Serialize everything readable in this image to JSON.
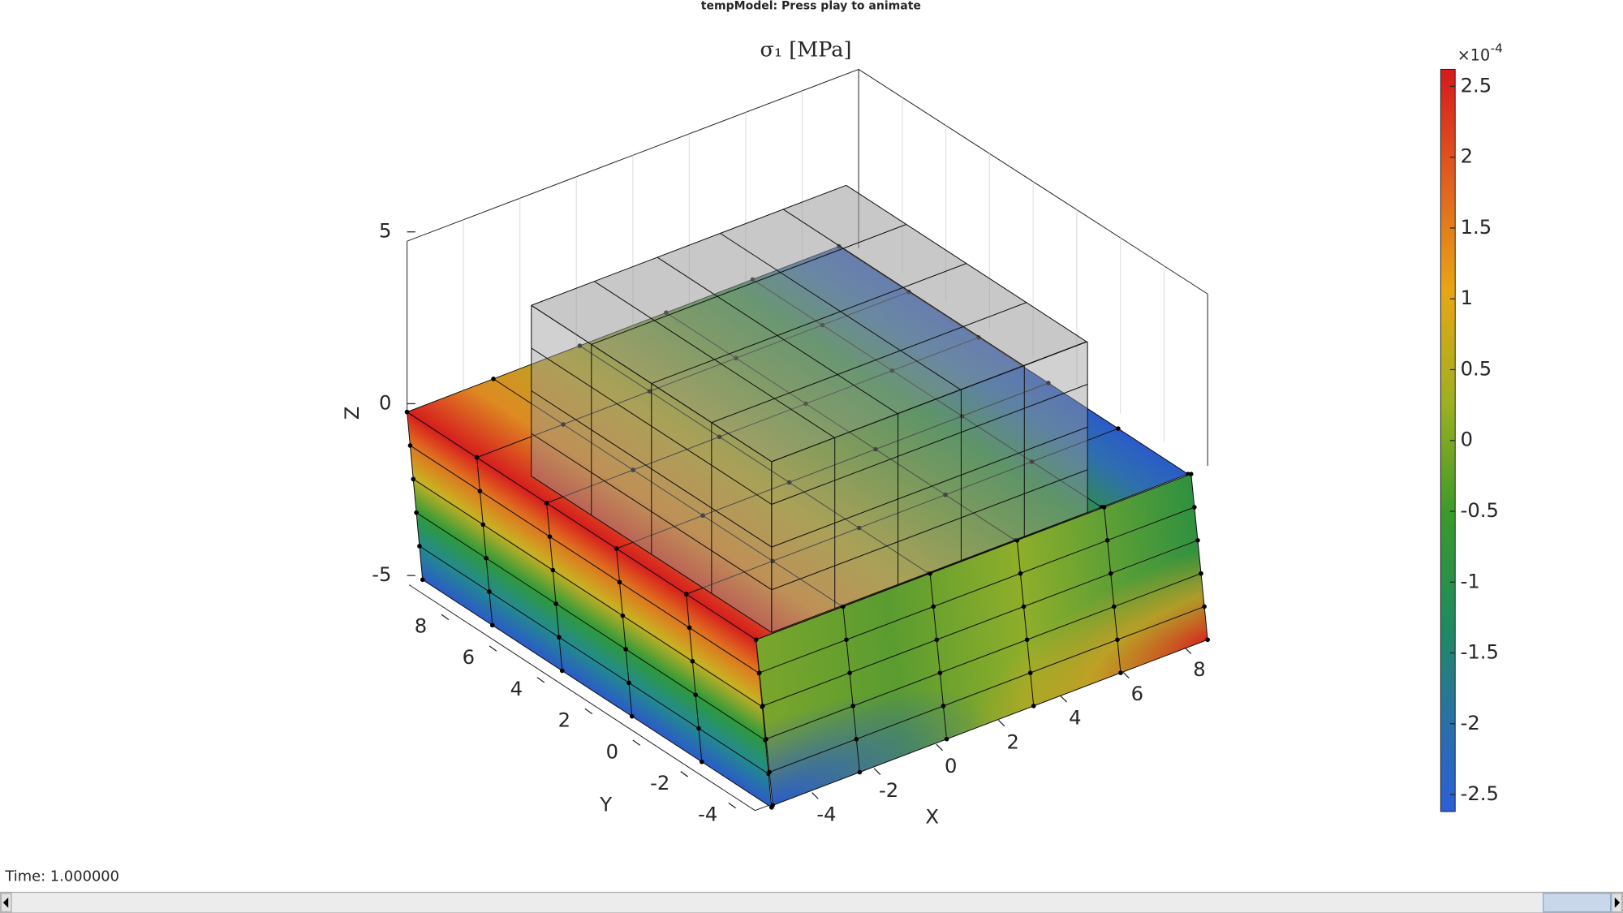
{
  "window": {
    "title": "tempModel: Press play to animate"
  },
  "axes": {
    "title": "σ₁ [MPa]",
    "xlabel": "X",
    "ylabel": "Y",
    "zlabel": "Z",
    "xticks": [
      -4,
      -2,
      0,
      2,
      4,
      6,
      8
    ],
    "yticks": [
      -4,
      -2,
      0,
      2,
      4,
      6,
      8
    ],
    "zticks": [
      -5,
      0,
      5
    ]
  },
  "colorbar": {
    "multiplier": "×10",
    "exponent": "-4",
    "clim": [
      -2.62,
      2.62
    ],
    "ticks": [
      2.5,
      2,
      1.5,
      1,
      0.5,
      0,
      -0.5,
      -1,
      -1.5,
      -2,
      -2.5
    ]
  },
  "status": {
    "time": "Time: 1.000000"
  }
}
